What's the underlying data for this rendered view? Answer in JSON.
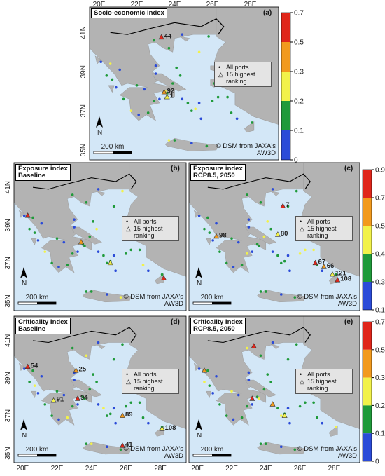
{
  "axes": {
    "lat_labels": [
      "41N",
      "39N",
      "37N",
      "35N"
    ],
    "lon_labels": [
      "20E",
      "22E",
      "24E",
      "26E",
      "28E"
    ]
  },
  "colorbars": [
    {
      "ticks": [
        0.7,
        0.5,
        0.3,
        0.2,
        0.1,
        0
      ]
    },
    {
      "ticks": [
        0.9,
        0.7,
        0.5,
        0.4,
        0.3,
        0.1
      ]
    },
    {
      "ticks": [
        0.7,
        0.5,
        0.3,
        0.2,
        0.1,
        0
      ]
    }
  ],
  "panels": [
    {
      "title": [
        "Socio-economic index"
      ],
      "letter": "(a)",
      "legend": [
        "All ports",
        "15 highest ranking"
      ],
      "scale": "200 km",
      "credit": "© DSM from JAXA's AW3D",
      "rank_labels": [
        "44",
        "92",
        "1"
      ]
    },
    {
      "title": [
        "Exposure index",
        "Baseline"
      ],
      "letter": "(b)",
      "legend": [
        "All ports",
        "15 highest ranking"
      ],
      "scale": "200 km",
      "credit": "© DSM from JAXA's AW3D",
      "rank_labels": []
    },
    {
      "title": [
        "Exposure index",
        "RCP8.5, 2050"
      ],
      "letter": "(c)",
      "legend": [
        "All ports",
        "15 highest ranking"
      ],
      "scale": "200 km",
      "credit": "© DSM from JAXA's AW3D",
      "rank_labels": [
        "7",
        "98",
        "80",
        "67",
        "66",
        "121",
        "108"
      ]
    },
    {
      "title": [
        "Criticality Index",
        "Baseline"
      ],
      "letter": "(d)",
      "legend": [
        "All ports",
        "15 highest ranking"
      ],
      "scale": "200 km",
      "credit": "© DSM from JAXA's AW3D",
      "rank_labels": [
        "54",
        "25",
        "91",
        "94",
        "89",
        "108",
        "41"
      ]
    },
    {
      "title": [
        "Criticality Index",
        "RCP8.5, 2050"
      ],
      "letter": "(e)",
      "legend": [
        "All ports",
        "15 highest ranking"
      ],
      "scale": "200 km",
      "credit": "© DSM from JAXA's AW3D",
      "rank_labels": []
    }
  ]
}
